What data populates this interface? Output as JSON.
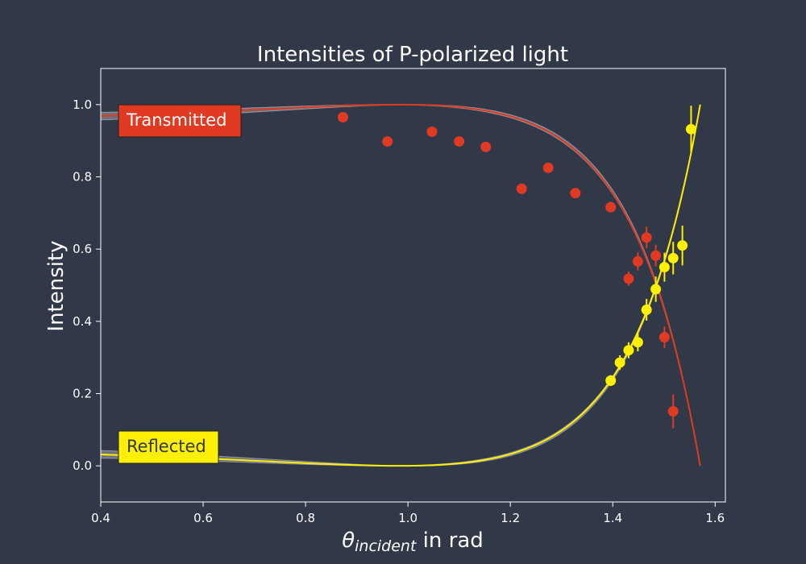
{
  "chart_data": {
    "type": "line",
    "title": "Intensities of P-polarized light",
    "xlabel_symbol": "θ",
    "xlabel_subscript": "incident",
    "xlabel_suffix": " in rad",
    "ylabel": "Intensity",
    "xlim": [
      0.4,
      1.62
    ],
    "ylim": [
      -0.1,
      1.1
    ],
    "xticks": [
      0.4,
      0.6,
      0.8,
      1.0,
      1.2,
      1.4,
      1.6
    ],
    "xtick_labels": [
      "0.4",
      "0.6",
      "0.8",
      "1.0",
      "1.2",
      "1.4",
      "1.6"
    ],
    "yticks": [
      0.0,
      0.2,
      0.4,
      0.6,
      0.8,
      1.0
    ],
    "ytick_labels": [
      "0.0",
      "0.2",
      "0.4",
      "0.6",
      "0.8",
      "1.0"
    ],
    "grid": false,
    "model": {
      "refractive_index": 1.5,
      "refractive_index_band": [
        1.4,
        1.6
      ],
      "theta_max": 1.5708
    },
    "series": [
      {
        "name": "Transmitted",
        "color": "#e03a22",
        "label_bg": "#e03a22",
        "label_text_color": "#ffffff",
        "label_anchor": "top-left",
        "points": [
          {
            "x": 0.873,
            "y": 0.965,
            "err": 0.0
          },
          {
            "x": 0.96,
            "y": 0.898,
            "err": 0.0
          },
          {
            "x": 1.047,
            "y": 0.925,
            "err": 0.0
          },
          {
            "x": 1.1,
            "y": 0.898,
            "err": 0.0
          },
          {
            "x": 1.152,
            "y": 0.883,
            "err": 0.0
          },
          {
            "x": 1.222,
            "y": 0.767,
            "err": 0.0
          },
          {
            "x": 1.274,
            "y": 0.825,
            "err": 0.0
          },
          {
            "x": 1.327,
            "y": 0.755,
            "err": 0.0
          },
          {
            "x": 1.396,
            "y": 0.716,
            "err": 0.0
          },
          {
            "x": 1.431,
            "y": 0.518,
            "err": 0.02
          },
          {
            "x": 1.449,
            "y": 0.566,
            "err": 0.025
          },
          {
            "x": 1.466,
            "y": 0.632,
            "err": 0.03
          },
          {
            "x": 1.484,
            "y": 0.582,
            "err": 0.03
          },
          {
            "x": 1.501,
            "y": 0.356,
            "err": 0.03
          },
          {
            "x": 1.518,
            "y": 0.151,
            "err": 0.047
          }
        ]
      },
      {
        "name": "Reflected",
        "color": "#ffef00",
        "label_bg": "#ffef00",
        "label_text_color": "#313847",
        "label_anchor": "bottom-left",
        "points": [
          {
            "x": 1.396,
            "y": 0.236,
            "err": 0.015
          },
          {
            "x": 1.414,
            "y": 0.286,
            "err": 0.02
          },
          {
            "x": 1.431,
            "y": 0.32,
            "err": 0.022
          },
          {
            "x": 1.449,
            "y": 0.342,
            "err": 0.025
          },
          {
            "x": 1.466,
            "y": 0.432,
            "err": 0.03
          },
          {
            "x": 1.484,
            "y": 0.489,
            "err": 0.035
          },
          {
            "x": 1.501,
            "y": 0.55,
            "err": 0.04
          },
          {
            "x": 1.518,
            "y": 0.575,
            "err": 0.045
          },
          {
            "x": 1.536,
            "y": 0.61,
            "err": 0.055
          },
          {
            "x": 1.553,
            "y": 0.932,
            "err": 0.065
          }
        ]
      }
    ]
  },
  "colors": {
    "background": "#313847",
    "axes_frame": "#ffffff",
    "band_fill": "#c8c8cc",
    "band_edge": "#d4d4d8"
  }
}
